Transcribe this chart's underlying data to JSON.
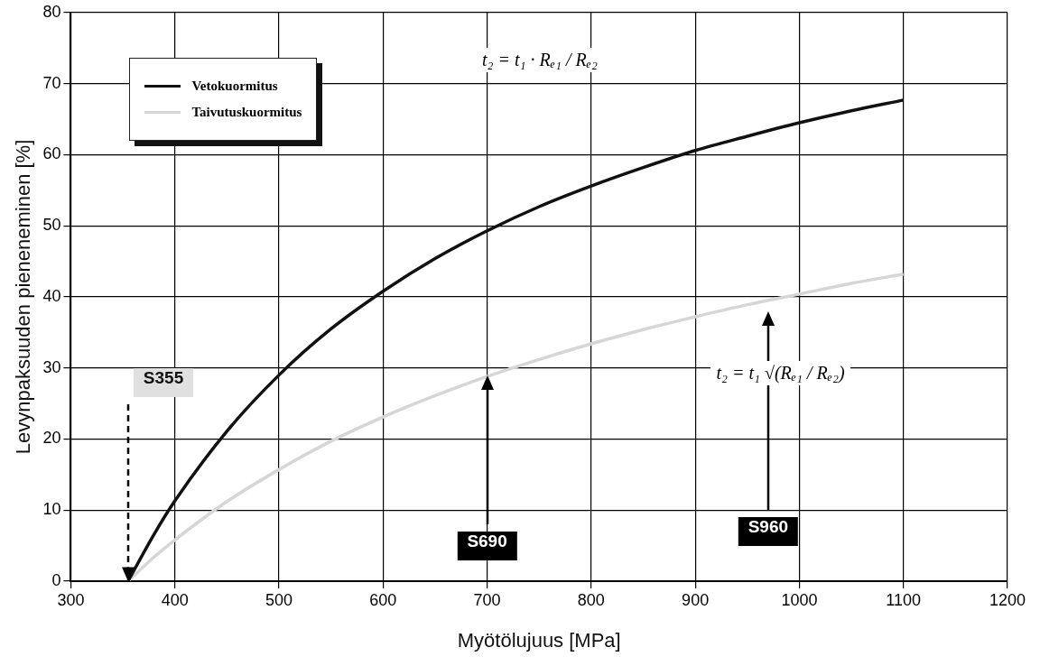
{
  "chart_data": {
    "type": "line",
    "xlabel": "Myötölujuus [MPa]",
    "ylabel": "Levynpaksuuden pieneneminen [%]",
    "x": [
      355,
      380,
      400,
      450,
      500,
      550,
      600,
      650,
      700,
      750,
      800,
      850,
      900,
      950,
      1000,
      1050,
      1100
    ],
    "series": [
      {
        "name": "Vetokuormitus",
        "color": "#111111",
        "values": [
          0,
          6.6,
          11.3,
          21.1,
          29,
          35.5,
          40.8,
          45.4,
          49.3,
          52.7,
          55.6,
          58.2,
          60.6,
          62.6,
          64.5,
          66.2,
          67.7
        ]
      },
      {
        "name": "Taivutuskuormitus",
        "color": "#d6d6d6",
        "values": [
          0,
          3.4,
          5.8,
          11.2,
          15.7,
          19.7,
          23.1,
          26.1,
          28.8,
          31.2,
          33.4,
          35.4,
          37.2,
          38.9,
          40.4,
          41.9,
          43.2
        ]
      }
    ],
    "xlim": [
      300,
      1200
    ],
    "xticks": [
      300,
      400,
      500,
      600,
      700,
      800,
      900,
      1000,
      1100,
      1200
    ],
    "ylim": [
      0,
      80
    ],
    "yticks": [
      0,
      10,
      20,
      30,
      40,
      50,
      60,
      70,
      80
    ],
    "grid": true,
    "legend": "top left",
    "marker": "none",
    "line_style": "solid",
    "annotations": [
      "t₂ = t₁ · Rₑ₁ / Rₑ₂",
      "t₂ = t₁ √(Rₑ₁ / Rₑ₂)",
      "S355",
      "S690",
      "S960"
    ]
  }
}
